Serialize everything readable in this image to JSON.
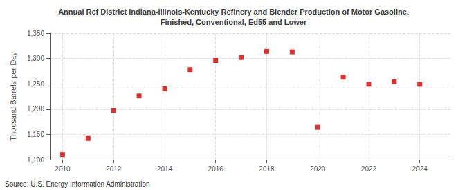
{
  "chart_data": {
    "type": "scatter",
    "title": "Annual Ref District Indiana-Illinois-Kentucky Refinery and Blender Production of Motor Gasoline,\nFinished, Conventional, Ed55 and Lower",
    "ylabel": "Thousand Barrels per Day",
    "source": "Source: U.S. Energy Information Administration",
    "x": [
      2010,
      2011,
      2012,
      2013,
      2014,
      2015,
      2016,
      2017,
      2018,
      2019,
      2020,
      2021,
      2022,
      2023,
      2024
    ],
    "values": [
      1110,
      1142,
      1197,
      1226,
      1240,
      1278,
      1296,
      1302,
      1314,
      1313,
      1164,
      1263,
      1249,
      1254,
      1249
    ],
    "color": "#cc0000",
    "marker": "square",
    "xlim": [
      2009.5,
      2025.2
    ],
    "xticks": [
      2010,
      2012,
      2014,
      2016,
      2018,
      2020,
      2022,
      2024
    ],
    "ylim": [
      1100,
      1350
    ],
    "yticks": [
      {
        "value": 1100,
        "label": "1,100"
      },
      {
        "value": 1150,
        "label": "1,150"
      },
      {
        "value": 1200,
        "label": "1,200"
      },
      {
        "value": 1250,
        "label": "1,250"
      },
      {
        "value": 1300,
        "label": "1,300"
      },
      {
        "value": 1350,
        "label": "1,350"
      }
    ],
    "grid": true
  }
}
